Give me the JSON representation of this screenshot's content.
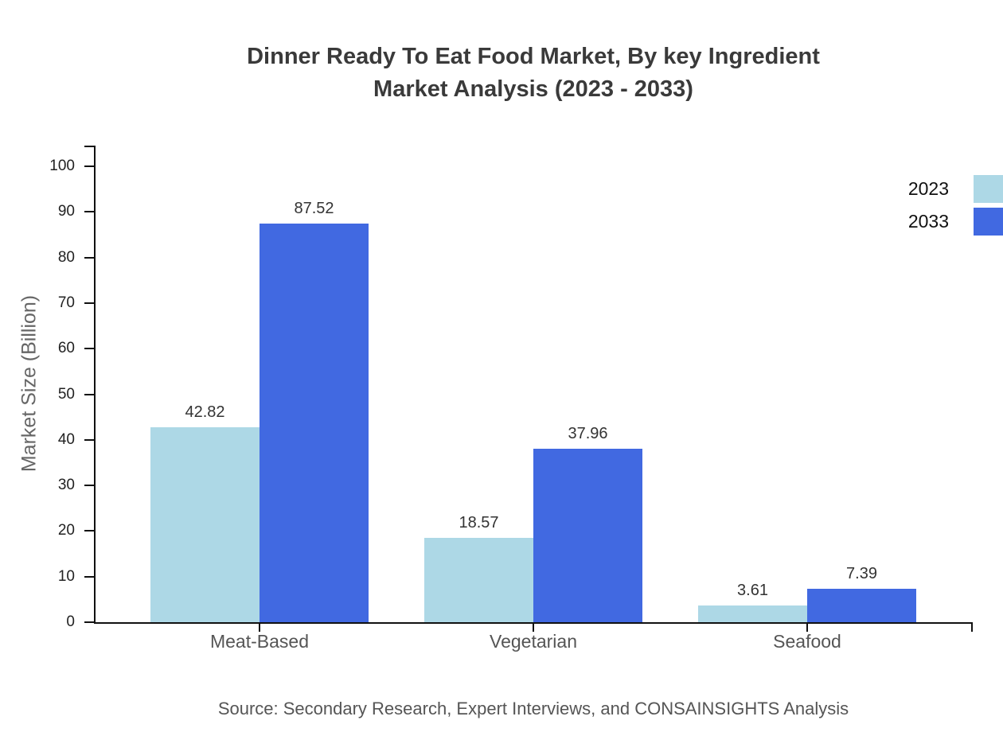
{
  "title": {
    "line1": "Dinner Ready To Eat Food Market, By key Ingredient",
    "line2": "Market Analysis (2023 - 2033)"
  },
  "source_note": "Source: Secondary Research, Expert Interviews, and CONSAINSIGHTS Analysis",
  "colors": {
    "series_2023": "#ADD8E6",
    "series_2033": "#4169E1",
    "axis": "#111111",
    "title_text": "#3A3A3A",
    "tick_label": "#222222",
    "category_label": "#555555",
    "axis_title": "#666666",
    "value_label": "#333333",
    "source_text": "#555555",
    "background": "#FFFFFF"
  },
  "chart_data": {
    "type": "bar",
    "title": "Dinner Ready To Eat Food Market, By key Ingredient Market Analysis (2023 - 2033)",
    "categories": [
      "Meat-Based",
      "Vegetarian",
      "Seafood"
    ],
    "series": [
      {
        "name": "2023",
        "color": "#ADD8E6",
        "values": [
          42.82,
          18.57,
          3.61
        ]
      },
      {
        "name": "2033",
        "color": "#4169E1",
        "values": [
          87.52,
          37.96,
          7.39
        ]
      }
    ],
    "value_labels": [
      "42.82",
      "87.52",
      "18.57",
      "37.96",
      "3.61",
      "7.39"
    ],
    "xlabel": "",
    "ylabel": "Market Size (Billion)",
    "ylim": [
      0,
      100
    ],
    "yticks": [
      0,
      10,
      20,
      30,
      40,
      50,
      60,
      70,
      80,
      90,
      100
    ],
    "grid": false,
    "legend": {
      "entries": [
        "2023",
        "2033"
      ],
      "position": "top-right-outside"
    },
    "bar_value_labels_shown": true
  }
}
